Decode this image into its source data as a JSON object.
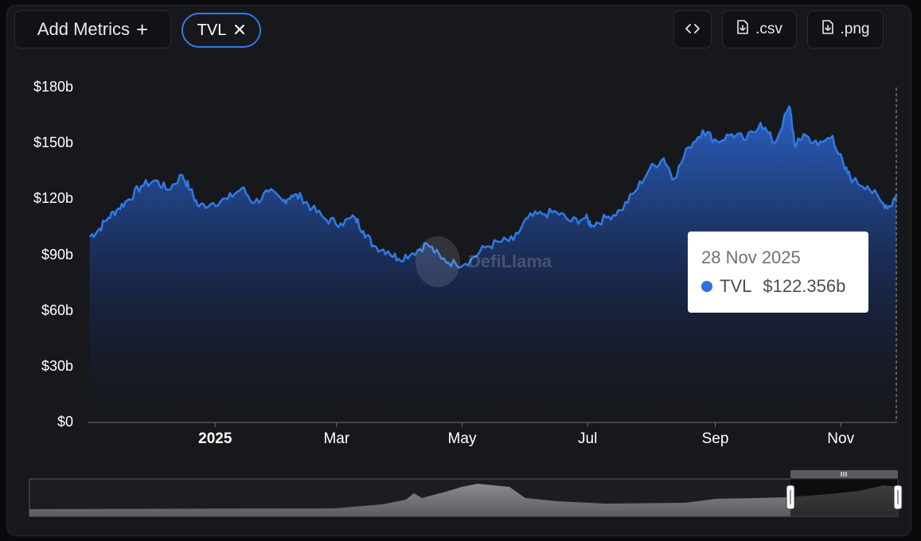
{
  "toolbar": {
    "add_metrics_label": "Add Metrics",
    "add_metrics_icon": "plus-icon",
    "metric_pill_label": "TVL",
    "metric_pill_icon": "close-icon",
    "embed_icon": "code-icon",
    "csv_label": ".csv",
    "csv_icon": "file-download-icon",
    "png_label": ".png",
    "png_icon": "file-download-icon"
  },
  "watermark": "DefiLlama",
  "tooltip": {
    "date": "28 Nov 2025",
    "series": "TVL",
    "value": "$122.356b"
  },
  "colors": {
    "line": "#2f7ae5",
    "background": "#17181c"
  },
  "chart_data": {
    "type": "area",
    "series": [
      {
        "name": "TVL",
        "points": [
          [
            "2024-11-01",
            100
          ],
          [
            "2024-11-05",
            103
          ],
          [
            "2024-11-10",
            110
          ],
          [
            "2024-11-15",
            115
          ],
          [
            "2024-11-20",
            120
          ],
          [
            "2024-11-26",
            127
          ],
          [
            "2024-12-03",
            130
          ],
          [
            "2024-12-09",
            125
          ],
          [
            "2024-12-16",
            133
          ],
          [
            "2024-12-20",
            125
          ],
          [
            "2024-12-24",
            116
          ],
          [
            "2024-12-31",
            118
          ],
          [
            "2025-01-07",
            120
          ],
          [
            "2025-01-14",
            126
          ],
          [
            "2025-01-20",
            118
          ],
          [
            "2025-01-27",
            124
          ],
          [
            "2025-02-03",
            119
          ],
          [
            "2025-02-07",
            122
          ],
          [
            "2025-02-12",
            121
          ],
          [
            "2025-02-17",
            115
          ],
          [
            "2025-02-24",
            109
          ],
          [
            "2025-03-03",
            107
          ],
          [
            "2025-03-10",
            110
          ],
          [
            "2025-03-14",
            103
          ],
          [
            "2025-03-19",
            95
          ],
          [
            "2025-03-26",
            92
          ],
          [
            "2025-03-31",
            88
          ],
          [
            "2025-04-07",
            91
          ],
          [
            "2025-04-14",
            96
          ],
          [
            "2025-04-21",
            88
          ],
          [
            "2025-04-28",
            85
          ],
          [
            "2025-05-05",
            87
          ],
          [
            "2025-05-12",
            94
          ],
          [
            "2025-05-19",
            97
          ],
          [
            "2025-05-26",
            98
          ],
          [
            "2025-06-02",
            110
          ],
          [
            "2025-06-09",
            112
          ],
          [
            "2025-06-16",
            113
          ],
          [
            "2025-06-23",
            108
          ],
          [
            "2025-06-30",
            110
          ],
          [
            "2025-07-03",
            106
          ],
          [
            "2025-07-10",
            110
          ],
          [
            "2025-07-17",
            114
          ],
          [
            "2025-07-24",
            124
          ],
          [
            "2025-07-31",
            136
          ],
          [
            "2025-08-07",
            142
          ],
          [
            "2025-08-12",
            131
          ],
          [
            "2025-08-19",
            148
          ],
          [
            "2025-08-26",
            157
          ],
          [
            "2025-09-02",
            151
          ],
          [
            "2025-09-09",
            155
          ],
          [
            "2025-09-16",
            152
          ],
          [
            "2025-09-23",
            161
          ],
          [
            "2025-09-30",
            150
          ],
          [
            "2025-10-07",
            170
          ],
          [
            "2025-10-10",
            148
          ],
          [
            "2025-10-14",
            155
          ],
          [
            "2025-10-21",
            149
          ],
          [
            "2025-10-28",
            154
          ],
          [
            "2025-11-03",
            136
          ],
          [
            "2025-11-07",
            130
          ],
          [
            "2025-11-14",
            127
          ],
          [
            "2025-11-21",
            118
          ],
          [
            "2025-11-25",
            116
          ],
          [
            "2025-11-28",
            122.356
          ]
        ]
      }
    ],
    "y_ticks": [
      "$0",
      "$30b",
      "$60b",
      "$90b",
      "$120b",
      "$150b",
      "$180b"
    ],
    "ylim": [
      0,
      180
    ],
    "x_ticks": [
      {
        "date": "2025-01-01",
        "label": "2025",
        "bold": true
      },
      {
        "date": "2025-03-01",
        "label": "Mar",
        "bold": false
      },
      {
        "date": "2025-05-01",
        "label": "May",
        "bold": false
      },
      {
        "date": "2025-07-01",
        "label": "Jul",
        "bold": false
      },
      {
        "date": "2025-09-01",
        "label": "Sep",
        "bold": false
      },
      {
        "date": "2025-11-01",
        "label": "Nov",
        "bold": false
      }
    ],
    "xlim": [
      "2024-10-31",
      "2025-11-28"
    ],
    "grid": false,
    "legend": "none"
  }
}
